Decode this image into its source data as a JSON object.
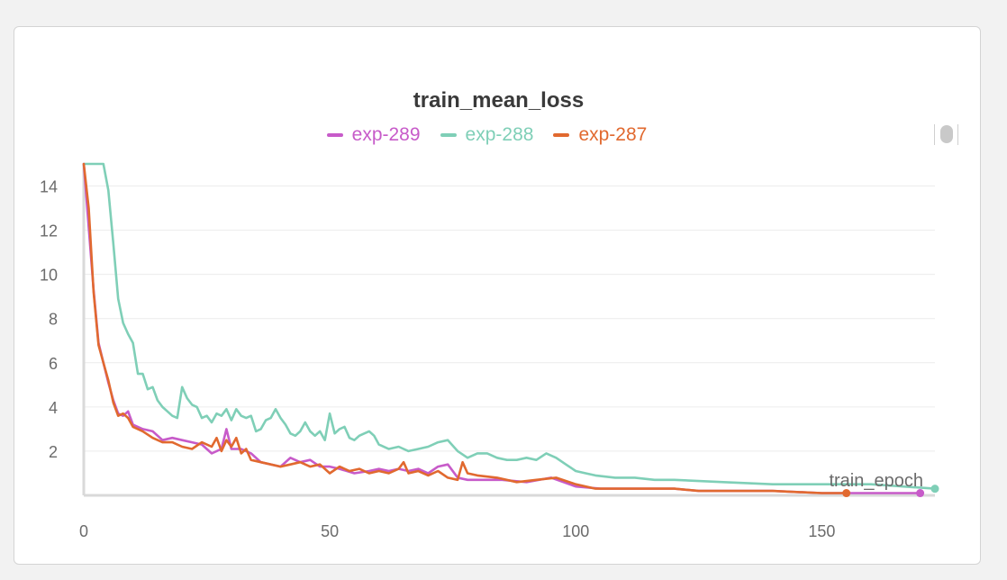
{
  "chart_data": {
    "type": "line",
    "title": "train_mean_loss",
    "xlabel": "",
    "ylabel": "",
    "xlim": [
      0,
      173
    ],
    "ylim": [
      0,
      15
    ],
    "xticks": [
      0,
      50,
      100,
      150
    ],
    "yticks": [
      2,
      4,
      6,
      8,
      10,
      12,
      14
    ],
    "grid": true,
    "legend_position": "top",
    "end_label": "train_epoch",
    "series": [
      {
        "name": "exp-289",
        "color": "#c75bc9",
        "x": [
          0,
          2,
          3,
          4,
          5,
          6,
          7,
          8,
          9,
          10,
          12,
          14,
          16,
          18,
          20,
          22,
          24,
          26,
          28,
          29,
          30,
          32,
          34,
          36,
          40,
          42,
          44,
          46,
          48,
          50,
          52,
          55,
          58,
          60,
          62,
          64,
          66,
          68,
          70,
          72,
          74,
          76,
          78,
          80,
          85,
          90,
          95,
          100,
          105,
          110,
          115,
          120,
          125,
          130,
          140,
          150,
          160,
          170
        ],
        "y": [
          15,
          9.3,
          6.9,
          6.0,
          5.1,
          4.3,
          3.7,
          3.6,
          3.8,
          3.2,
          3.0,
          2.9,
          2.5,
          2.6,
          2.5,
          2.4,
          2.3,
          1.9,
          2.1,
          3.0,
          2.1,
          2.1,
          1.9,
          1.5,
          1.3,
          1.7,
          1.5,
          1.6,
          1.3,
          1.3,
          1.2,
          1.0,
          1.1,
          1.2,
          1.1,
          1.2,
          1.1,
          1.2,
          1.0,
          1.3,
          1.4,
          0.8,
          0.7,
          0.7,
          0.7,
          0.6,
          0.8,
          0.4,
          0.3,
          0.3,
          0.3,
          0.3,
          0.2,
          0.2,
          0.2,
          0.1,
          0.1,
          0.1
        ]
      },
      {
        "name": "exp-288",
        "color": "#7fcfb7",
        "x": [
          0,
          4,
          5,
          6,
          7,
          8,
          9,
          10,
          11,
          12,
          13,
          14,
          15,
          16,
          17,
          18,
          19,
          20,
          21,
          22,
          23,
          24,
          25,
          26,
          27,
          28,
          29,
          30,
          31,
          32,
          33,
          34,
          35,
          36,
          37,
          38,
          39,
          40,
          41,
          42,
          43,
          44,
          45,
          46,
          47,
          48,
          49,
          50,
          51,
          52,
          53,
          54,
          55,
          56,
          57,
          58,
          59,
          60,
          62,
          64,
          66,
          68,
          70,
          72,
          74,
          76,
          78,
          80,
          82,
          84,
          86,
          88,
          90,
          92,
          94,
          96,
          98,
          100,
          102,
          104,
          108,
          112,
          116,
          120,
          130,
          140,
          150,
          160,
          173
        ],
        "y": [
          15,
          15,
          13.8,
          11.4,
          8.9,
          7.8,
          7.3,
          6.9,
          5.5,
          5.5,
          4.8,
          4.9,
          4.3,
          4.0,
          3.8,
          3.6,
          3.5,
          4.9,
          4.4,
          4.1,
          4.0,
          3.5,
          3.6,
          3.3,
          3.7,
          3.6,
          3.9,
          3.4,
          3.9,
          3.6,
          3.5,
          3.6,
          2.9,
          3.0,
          3.4,
          3.5,
          3.9,
          3.5,
          3.2,
          2.8,
          2.7,
          2.9,
          3.3,
          2.9,
          2.7,
          2.9,
          2.5,
          3.7,
          2.8,
          3.0,
          3.1,
          2.6,
          2.5,
          2.7,
          2.8,
          2.9,
          2.7,
          2.3,
          2.1,
          2.2,
          2.0,
          2.1,
          2.2,
          2.4,
          2.5,
          2.0,
          1.7,
          1.9,
          1.9,
          1.7,
          1.6,
          1.6,
          1.7,
          1.6,
          1.9,
          1.7,
          1.4,
          1.1,
          1.0,
          0.9,
          0.8,
          0.8,
          0.7,
          0.7,
          0.6,
          0.5,
          0.5,
          0.5,
          0.3
        ]
      },
      {
        "name": "exp-287",
        "color": "#e1692f",
        "x": [
          0,
          1,
          2,
          3,
          4,
          5,
          6,
          7,
          8,
          9,
          10,
          12,
          14,
          16,
          18,
          20,
          22,
          24,
          26,
          27,
          28,
          29,
          30,
          31,
          32,
          33,
          34,
          36,
          40,
          42,
          44,
          46,
          48,
          50,
          52,
          54,
          56,
          58,
          60,
          62,
          64,
          65,
          66,
          68,
          70,
          72,
          74,
          76,
          77,
          78,
          80,
          84,
          88,
          92,
          96,
          100,
          104,
          108,
          112,
          116,
          120,
          125,
          130,
          140,
          150,
          155
        ],
        "y": [
          15,
          13.0,
          9.2,
          6.8,
          6.0,
          5.2,
          4.2,
          3.6,
          3.7,
          3.5,
          3.1,
          2.9,
          2.6,
          2.4,
          2.4,
          2.2,
          2.1,
          2.4,
          2.2,
          2.6,
          2.0,
          2.5,
          2.2,
          2.6,
          1.9,
          2.1,
          1.6,
          1.5,
          1.3,
          1.4,
          1.5,
          1.3,
          1.4,
          1.0,
          1.3,
          1.1,
          1.2,
          1.0,
          1.1,
          1.0,
          1.2,
          1.5,
          1.0,
          1.1,
          0.9,
          1.1,
          0.8,
          0.7,
          1.5,
          1.0,
          0.9,
          0.8,
          0.6,
          0.7,
          0.8,
          0.5,
          0.3,
          0.3,
          0.3,
          0.3,
          0.3,
          0.2,
          0.2,
          0.2,
          0.1,
          0.1
        ]
      }
    ]
  }
}
